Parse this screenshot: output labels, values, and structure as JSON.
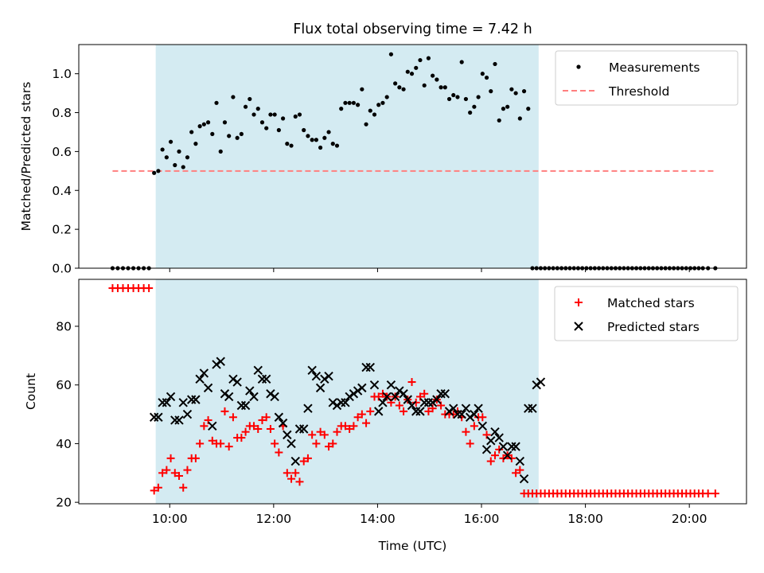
{
  "chart_data": [
    {
      "type": "scatter",
      "title": "Flux total observing time = 7.42 h",
      "xlabel": "",
      "ylabel": "Matched/Predicted stars",
      "xlim": [
        8.25,
        21.1
      ],
      "ylim": [
        0.0,
        1.15
      ],
      "yticks": [
        0.0,
        0.2,
        0.4,
        0.6,
        0.8,
        1.0
      ],
      "ytick_labels": [
        "0.0",
        "0.2",
        "0.4",
        "0.6",
        "0.8",
        "1.0"
      ],
      "xticks": [
        10,
        12,
        14,
        16,
        18,
        20
      ],
      "grid": false,
      "legend_placement": "top-right",
      "observing_window": [
        9.73,
        17.1
      ],
      "colors": {
        "measurements": "#000000",
        "threshold": "#ff7f7f",
        "window": "#add8e6"
      },
      "legend": {
        "measurements": "Measurements",
        "threshold": "Threshold"
      },
      "threshold": {
        "value": 0.5,
        "x": [
          8.9,
          20.5
        ]
      },
      "measurements": {
        "x": [
          8.9,
          9.0,
          9.1,
          9.2,
          9.3,
          9.4,
          9.5,
          9.6,
          9.7,
          9.78,
          9.86,
          9.94,
          10.02,
          10.1,
          10.18,
          10.26,
          10.34,
          10.42,
          10.5,
          10.58,
          10.66,
          10.74,
          10.82,
          10.9,
          10.98,
          11.06,
          11.14,
          11.22,
          11.3,
          11.38,
          11.46,
          11.54,
          11.62,
          11.7,
          11.78,
          11.86,
          11.94,
          12.02,
          12.1,
          12.18,
          12.26,
          12.34,
          12.42,
          12.5,
          12.58,
          12.66,
          12.74,
          12.82,
          12.9,
          12.98,
          13.06,
          13.14,
          13.22,
          13.3,
          13.38,
          13.46,
          13.54,
          13.62,
          13.7,
          13.78,
          13.86,
          13.94,
          14.02,
          14.1,
          14.18,
          14.26,
          14.34,
          14.42,
          14.5,
          14.58,
          14.66,
          14.74,
          14.82,
          14.9,
          14.98,
          15.06,
          15.14,
          15.22,
          15.3,
          15.38,
          15.46,
          15.54,
          15.62,
          15.7,
          15.78,
          15.86,
          15.94,
          16.02,
          16.1,
          16.18,
          16.26,
          16.34,
          16.42,
          16.5,
          16.58,
          16.66,
          16.74,
          16.82,
          16.9,
          16.98,
          17.06,
          17.14,
          17.22,
          17.3,
          17.38,
          17.46,
          17.54,
          17.62,
          17.7,
          17.78,
          17.86,
          17.94,
          18.02,
          18.1,
          18.18,
          18.26,
          18.34,
          18.42,
          18.5,
          18.58,
          18.66,
          18.74,
          18.82,
          18.9,
          18.98,
          19.06,
          19.14,
          19.22,
          19.3,
          19.38,
          19.46,
          19.54,
          19.62,
          19.7,
          19.78,
          19.86,
          19.94,
          20.02,
          20.1,
          20.18,
          20.26,
          20.36,
          20.5
        ],
        "y": [
          0,
          0,
          0,
          0,
          0,
          0,
          0,
          0,
          0.49,
          0.5,
          0.61,
          0.57,
          0.65,
          0.53,
          0.6,
          0.52,
          0.57,
          0.7,
          0.64,
          0.73,
          0.74,
          0.75,
          0.69,
          0.85,
          0.6,
          0.75,
          0.68,
          0.88,
          0.67,
          0.69,
          0.83,
          0.87,
          0.79,
          0.82,
          0.75,
          0.72,
          0.79,
          0.79,
          0.71,
          0.77,
          0.64,
          0.63,
          0.78,
          0.79,
          0.71,
          0.68,
          0.66,
          0.66,
          0.62,
          0.67,
          0.7,
          0.64,
          0.63,
          0.82,
          0.85,
          0.85,
          0.85,
          0.84,
          0.92,
          0.74,
          0.81,
          0.79,
          0.84,
          0.85,
          0.88,
          1.1,
          0.95,
          0.93,
          0.92,
          1.01,
          1.0,
          1.03,
          1.07,
          0.94,
          1.08,
          0.99,
          0.97,
          0.93,
          0.93,
          0.87,
          0.89,
          0.88,
          1.06,
          0.87,
          0.8,
          0.83,
          0.88,
          1.0,
          0.98,
          0.91,
          1.05,
          0.76,
          0.82,
          0.83,
          0.92,
          0.9,
          0.77,
          0.91,
          0.82,
          0,
          0,
          0,
          0,
          0,
          0,
          0,
          0,
          0,
          0,
          0,
          0,
          0,
          0,
          0,
          0,
          0,
          0,
          0,
          0,
          0,
          0,
          0,
          0,
          0,
          0,
          0,
          0,
          0,
          0,
          0,
          0,
          0,
          0,
          0,
          0,
          0,
          0,
          0,
          0,
          0,
          0,
          0,
          0
        ]
      }
    },
    {
      "type": "scatter",
      "title": "",
      "xlabel": "Time (UTC)",
      "ylabel": "Count",
      "xlim": [
        8.25,
        21.1
      ],
      "ylim": [
        19.5,
        96
      ],
      "yticks": [
        20,
        40,
        60,
        80
      ],
      "ytick_labels": [
        "20",
        "40",
        "60",
        "80"
      ],
      "xticks": [
        10,
        12,
        14,
        16,
        18,
        20
      ],
      "xtick_labels": [
        "10:00",
        "12:00",
        "14:00",
        "16:00",
        "18:00",
        "20:00"
      ],
      "grid": false,
      "legend_placement": "top-right",
      "observing_window": [
        9.73,
        17.1
      ],
      "colors": {
        "matched": "#ff0000",
        "predicted": "#000000",
        "window": "#add8e6"
      },
      "legend": {
        "matched": "Matched stars",
        "predicted": "Predicted stars"
      },
      "matched": {
        "x": [
          8.9,
          9.0,
          9.1,
          9.2,
          9.3,
          9.4,
          9.5,
          9.6,
          9.7,
          9.78,
          9.86,
          9.94,
          10.02,
          10.1,
          10.18,
          10.26,
          10.34,
          10.42,
          10.5,
          10.58,
          10.66,
          10.74,
          10.82,
          10.9,
          10.98,
          11.06,
          11.14,
          11.22,
          11.3,
          11.38,
          11.46,
          11.54,
          11.62,
          11.7,
          11.78,
          11.86,
          11.94,
          12.02,
          12.1,
          12.18,
          12.26,
          12.34,
          12.42,
          12.5,
          12.58,
          12.66,
          12.74,
          12.82,
          12.9,
          12.98,
          13.06,
          13.14,
          13.22,
          13.3,
          13.38,
          13.46,
          13.54,
          13.62,
          13.7,
          13.78,
          13.86,
          13.94,
          14.02,
          14.1,
          14.18,
          14.26,
          14.34,
          14.42,
          14.5,
          14.58,
          14.66,
          14.74,
          14.82,
          14.9,
          14.98,
          15.06,
          15.14,
          15.22,
          15.3,
          15.38,
          15.46,
          15.54,
          15.62,
          15.7,
          15.78,
          15.86,
          15.94,
          16.02,
          16.1,
          16.18,
          16.26,
          16.34,
          16.42,
          16.5,
          16.58,
          16.66,
          16.74,
          16.82,
          16.9,
          16.98,
          17.06,
          17.14,
          17.22,
          17.3,
          17.38,
          17.46,
          17.54,
          17.62,
          17.7,
          17.78,
          17.86,
          17.94,
          18.02,
          18.1,
          18.18,
          18.26,
          18.34,
          18.42,
          18.5,
          18.58,
          18.66,
          18.74,
          18.82,
          18.9,
          18.98,
          19.06,
          19.14,
          19.22,
          19.3,
          19.38,
          19.46,
          19.54,
          19.62,
          19.7,
          19.78,
          19.86,
          19.94,
          20.02,
          20.1,
          20.18,
          20.26,
          20.36,
          20.5
        ],
        "y": [
          93,
          93,
          93,
          93,
          93,
          93,
          93,
          93,
          24,
          25,
          30,
          31,
          35,
          30,
          29,
          25,
          31,
          35,
          35,
          40,
          46,
          48,
          41,
          40,
          40,
          51,
          39,
          49,
          42,
          42,
          44,
          46,
          46,
          45,
          48,
          49,
          45,
          40,
          37,
          46,
          30,
          28,
          30,
          27,
          34,
          35,
          43,
          40,
          44,
          43,
          39,
          40,
          44,
          46,
          46,
          45,
          46,
          49,
          50,
          47,
          51,
          56,
          56,
          57,
          56,
          54,
          56,
          53,
          51,
          55,
          61,
          54,
          56,
          57,
          51,
          52,
          55,
          53,
          50,
          50,
          50,
          51,
          49,
          44,
          40,
          46,
          49,
          49,
          43,
          34,
          36,
          38,
          35,
          36,
          35,
          30,
          31,
          23,
          23,
          23,
          23,
          23,
          23,
          23,
          23,
          23,
          23,
          23,
          23,
          23,
          23,
          23,
          23,
          23,
          23,
          23,
          23,
          23,
          23,
          23,
          23,
          23,
          23,
          23,
          23,
          23,
          23,
          23,
          23,
          23,
          23,
          23,
          23,
          23,
          23,
          23,
          23,
          23,
          23,
          23,
          23,
          23,
          23
        ]
      },
      "predicted": {
        "x": [
          9.7,
          9.78,
          9.86,
          9.94,
          10.02,
          10.1,
          10.18,
          10.26,
          10.34,
          10.42,
          10.5,
          10.58,
          10.66,
          10.74,
          10.82,
          10.9,
          10.98,
          11.06,
          11.14,
          11.22,
          11.3,
          11.38,
          11.46,
          11.54,
          11.62,
          11.7,
          11.78,
          11.86,
          11.94,
          12.02,
          12.1,
          12.18,
          12.26,
          12.34,
          12.42,
          12.5,
          12.58,
          12.66,
          12.74,
          12.82,
          12.9,
          12.98,
          13.06,
          13.14,
          13.22,
          13.3,
          13.38,
          13.46,
          13.54,
          13.62,
          13.7,
          13.78,
          13.86,
          13.94,
          14.02,
          14.1,
          14.18,
          14.26,
          14.34,
          14.42,
          14.5,
          14.58,
          14.66,
          14.74,
          14.82,
          14.9,
          14.98,
          15.06,
          15.14,
          15.22,
          15.3,
          15.38,
          15.46,
          15.54,
          15.62,
          15.7,
          15.78,
          15.86,
          15.94,
          16.02,
          16.1,
          16.18,
          16.26,
          16.34,
          16.42,
          16.5,
          16.58,
          16.66,
          16.74,
          16.82,
          16.9,
          16.98,
          17.06,
          17.14
        ],
        "y": [
          49,
          49,
          54,
          54,
          56,
          48,
          48,
          54,
          50,
          55,
          55,
          62,
          64,
          59,
          46,
          67,
          68,
          57,
          56,
          62,
          61,
          53,
          53,
          58,
          56,
          65,
          62,
          62,
          57,
          56,
          49,
          47,
          43,
          40,
          34,
          45,
          45,
          52,
          65,
          63,
          59,
          62,
          63,
          54,
          53,
          54,
          54,
          56,
          57,
          58,
          59,
          66,
          66,
          60,
          51,
          54,
          56,
          60,
          56,
          58,
          57,
          55,
          53,
          51,
          51,
          54,
          54,
          54,
          55,
          57,
          57,
          51,
          52,
          50,
          50,
          52,
          49,
          50,
          52,
          46,
          38,
          41,
          44,
          42,
          39,
          36,
          39,
          39,
          34,
          28,
          52,
          52,
          60,
          61
        ]
      }
    }
  ]
}
